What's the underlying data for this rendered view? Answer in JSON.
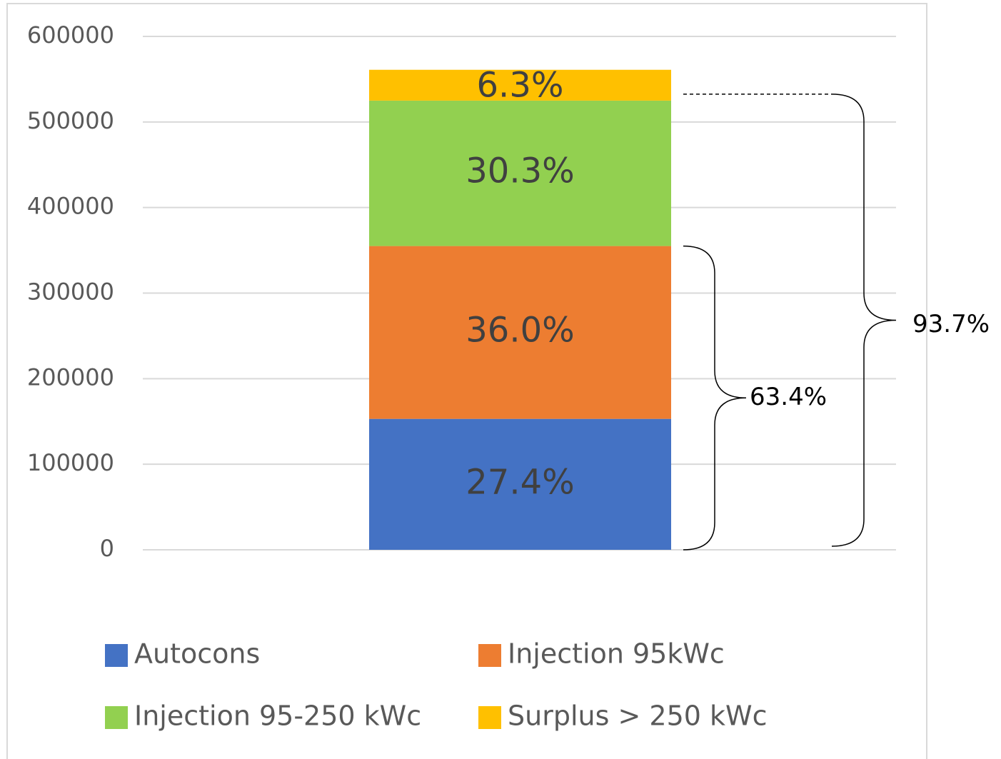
{
  "chart_data": {
    "type": "stacked_bar",
    "categories": [
      null
    ],
    "series": [
      {
        "name": "Autocons",
        "color": "#4472c4",
        "values": [
          153000
        ],
        "segment_labels": [
          "27.4%"
        ]
      },
      {
        "name": "Injection 95kWc",
        "color": "#ed7d31",
        "values": [
          202000
        ],
        "segment_labels": [
          "36.0%"
        ]
      },
      {
        "name": "Injection 95-250 kWc",
        "color": "#92d050",
        "values": [
          170000
        ],
        "segment_labels": [
          "30.3%"
        ]
      },
      {
        "name": "Surplus > 250 kWc",
        "color": "#ffc000",
        "values": [
          36000
        ],
        "segment_labels": [
          "6.3%"
        ]
      }
    ],
    "ylim": [
      0,
      600000
    ],
    "yticks": [
      0,
      100000,
      200000,
      300000,
      400000,
      500000,
      600000
    ],
    "grid": true,
    "legend": "bottom",
    "annotations": [
      "63.4%",
      "93.7%"
    ]
  }
}
